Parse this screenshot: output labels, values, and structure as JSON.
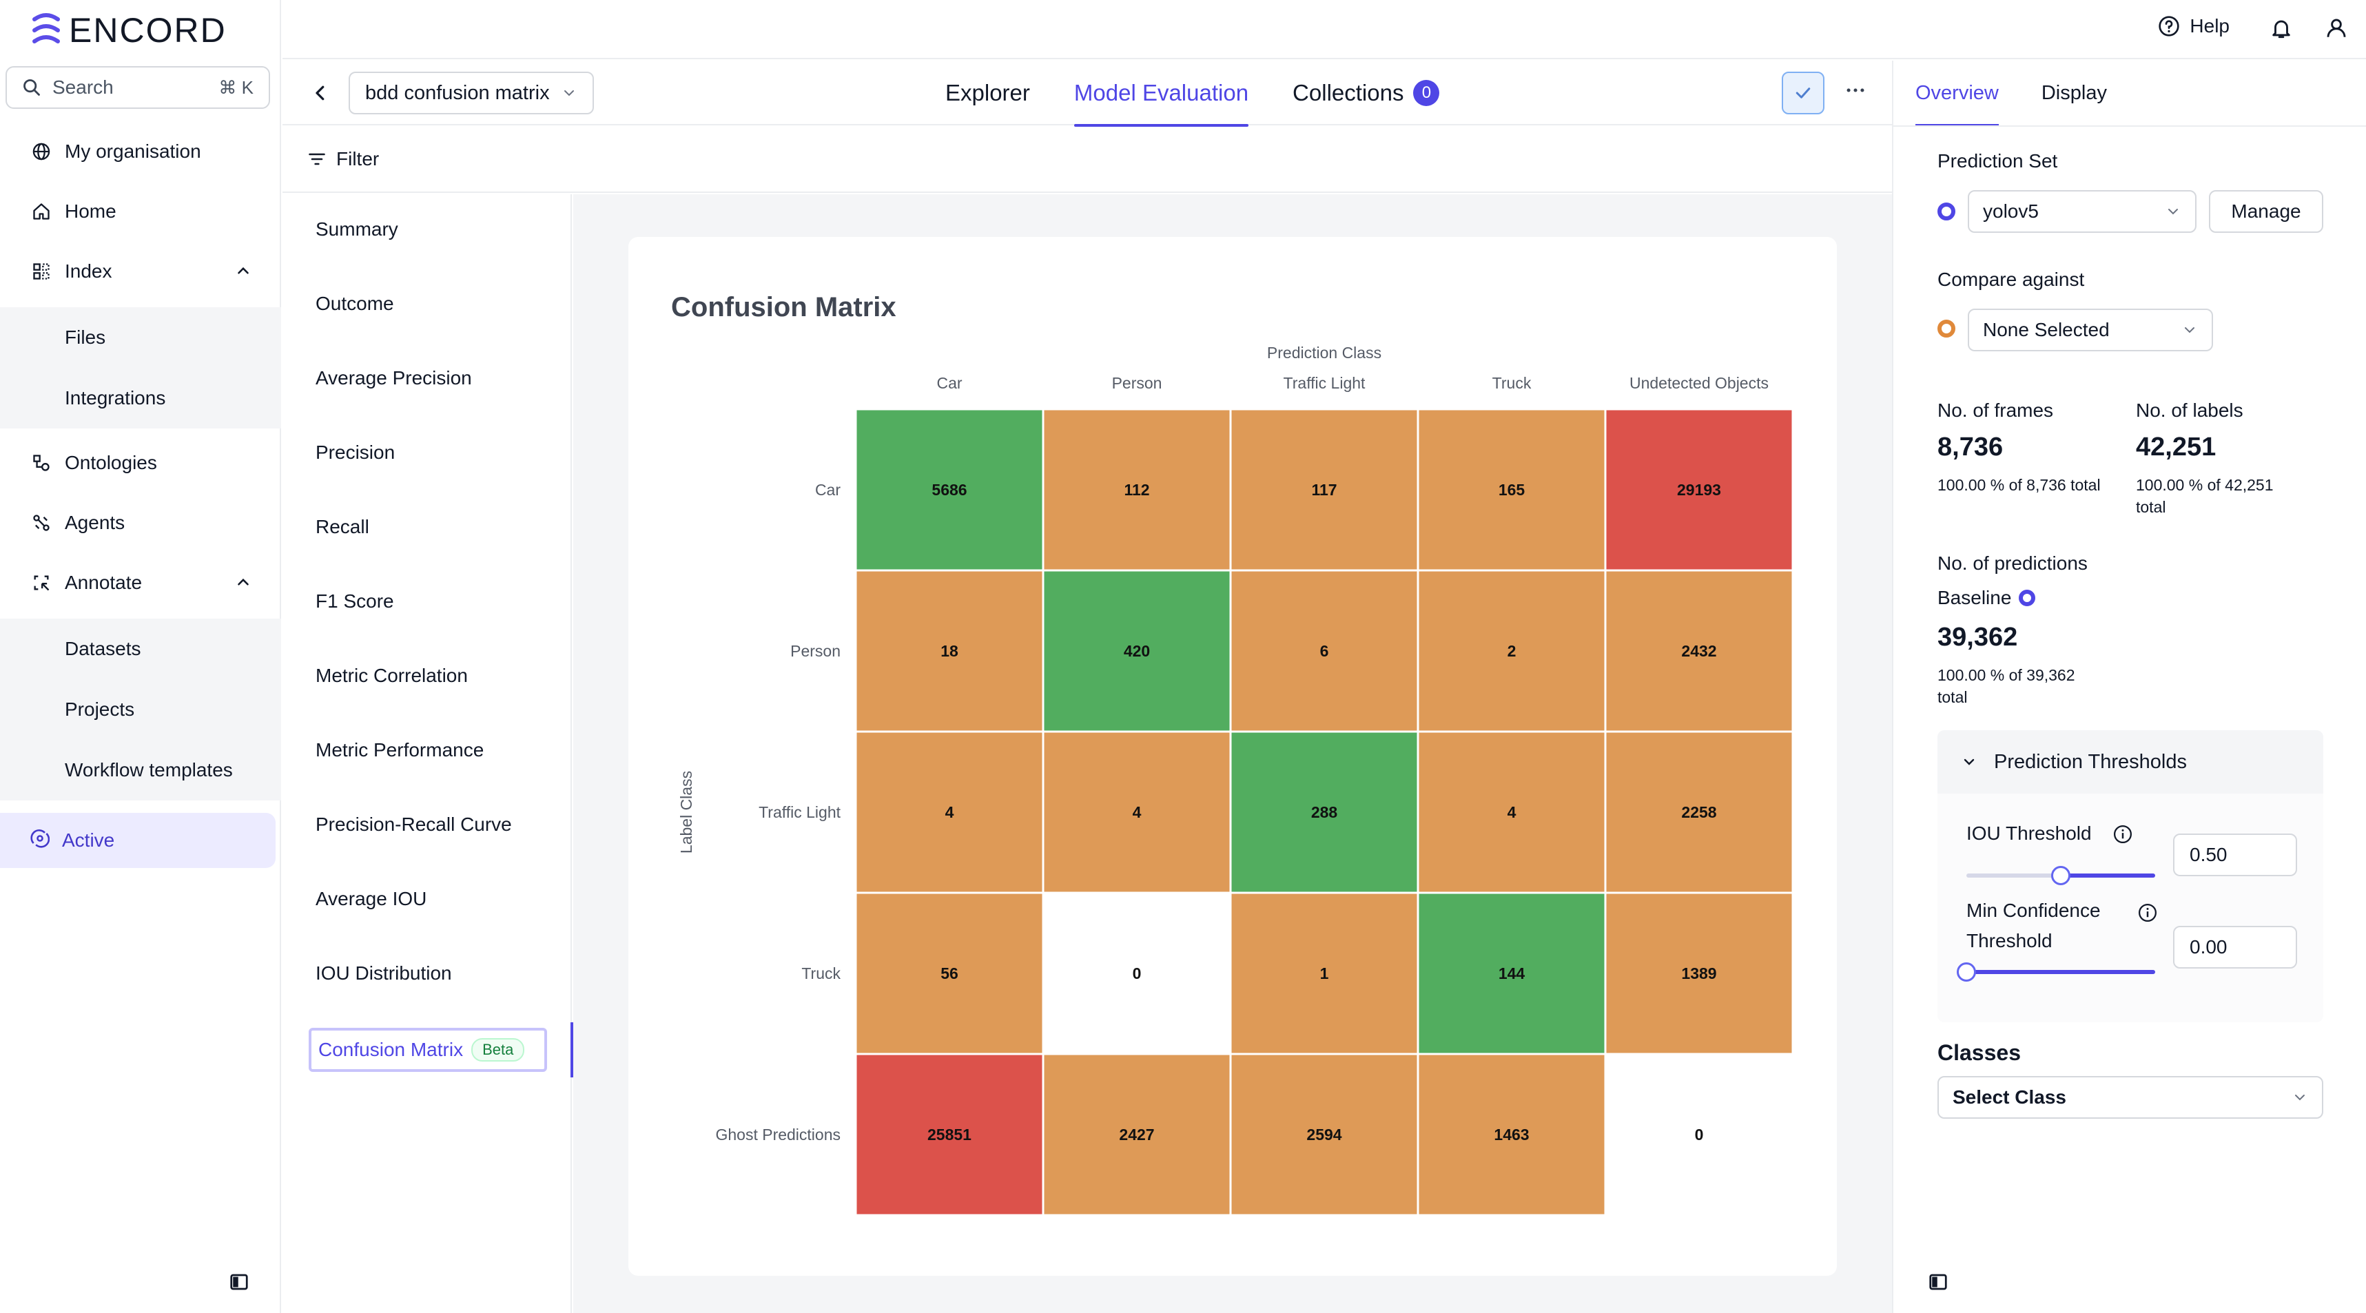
{
  "brand": {
    "name": "ENCORD"
  },
  "search": {
    "placeholder": "Search",
    "shortcut": "⌘ K"
  },
  "sidebar": {
    "items": [
      {
        "label": "My organisation",
        "icon": "globe-icon"
      },
      {
        "label": "Home",
        "icon": "home-icon"
      },
      {
        "label": "Index",
        "icon": "grid-icon",
        "expanded": true
      },
      {
        "label": "Files"
      },
      {
        "label": "Integrations"
      },
      {
        "label": "Ontologies",
        "icon": "ontology-icon"
      },
      {
        "label": "Agents",
        "icon": "agents-icon"
      },
      {
        "label": "Annotate",
        "icon": "annotate-icon",
        "expanded": true
      },
      {
        "label": "Datasets"
      },
      {
        "label": "Projects"
      },
      {
        "label": "Workflow templates"
      },
      {
        "label": "Active",
        "icon": "active-icon"
      }
    ]
  },
  "topbar": {
    "help_label": "Help"
  },
  "project": {
    "name": "bdd confusion matrix",
    "tabs": [
      {
        "label": "Explorer"
      },
      {
        "label": "Model Evaluation",
        "active": true
      },
      {
        "label": "Collections",
        "badge": "0"
      }
    ]
  },
  "filter": {
    "label": "Filter"
  },
  "metrics": {
    "items": [
      "Summary",
      "Outcome",
      "Average Precision",
      "Precision",
      "Recall",
      "F1 Score",
      "Metric Correlation",
      "Metric Performance",
      "Precision-Recall Curve",
      "Average IOU",
      "IOU Distribution"
    ],
    "active": "Confusion Matrix",
    "active_badge": "Beta"
  },
  "chart_data": {
    "type": "heatmap",
    "title": "Confusion Matrix",
    "xlabel": "Prediction Class",
    "ylabel": "Label Class",
    "columns": [
      "Car",
      "Person",
      "Traffic Light",
      "Truck",
      "Undetected Objects"
    ],
    "rows": [
      "Car",
      "Person",
      "Traffic Light",
      "Truck",
      "Ghost Predictions"
    ],
    "values": [
      [
        5686,
        112,
        117,
        165,
        29193
      ],
      [
        18,
        420,
        6,
        2,
        2432
      ],
      [
        4,
        4,
        288,
        4,
        2258
      ],
      [
        56,
        0,
        1,
        144,
        1389
      ],
      [
        25851,
        2427,
        2594,
        1463,
        0
      ]
    ],
    "cell_colors": [
      [
        "#52ad5f",
        "#de9a57",
        "#de9a57",
        "#de9a57",
        "#dc524b"
      ],
      [
        "#de9a57",
        "#52ad5f",
        "#de9a57",
        "#de9a57",
        "#de9a57"
      ],
      [
        "#de9a57",
        "#de9a57",
        "#52ad5f",
        "#de9a57",
        "#de9a57"
      ],
      [
        "#de9a57",
        "#ffffff",
        "#de9a57",
        "#52ad5f",
        "#de9a57"
      ],
      [
        "#dc524b",
        "#de9a57",
        "#de9a57",
        "#de9a57",
        "#ffffff"
      ]
    ]
  },
  "right_panel": {
    "tabs": [
      {
        "label": "Overview",
        "active": true
      },
      {
        "label": "Display"
      }
    ],
    "prediction_set": {
      "label": "Prediction Set",
      "value": "yolov5",
      "manage_label": "Manage",
      "dot_color": "#4f46e5"
    },
    "compare_against": {
      "label": "Compare against",
      "value": "None Selected",
      "dot_color": "#e0893a"
    },
    "frames": {
      "label": "No. of frames",
      "value": "8,736",
      "sub": "100.00 % of 8,736 total"
    },
    "labels": {
      "label": "No. of labels",
      "value": "42,251",
      "sub1": "100.00 % of 42,251",
      "sub2": "total"
    },
    "predictions": {
      "label": "No. of predictions",
      "baseline_label": "Baseline",
      "value": "39,362",
      "sub1": "100.00 % of 39,362",
      "sub2": "total"
    },
    "thresholds": {
      "title": "Prediction Thresholds",
      "iou": {
        "label": "IOU Threshold",
        "value": "0.50",
        "fraction": 0.5
      },
      "confidence": {
        "label1": "Min Confidence",
        "label2": "Threshold",
        "value": "0.00",
        "fraction": 0.0
      }
    },
    "classes": {
      "label": "Classes",
      "placeholder": "Select Class"
    }
  }
}
